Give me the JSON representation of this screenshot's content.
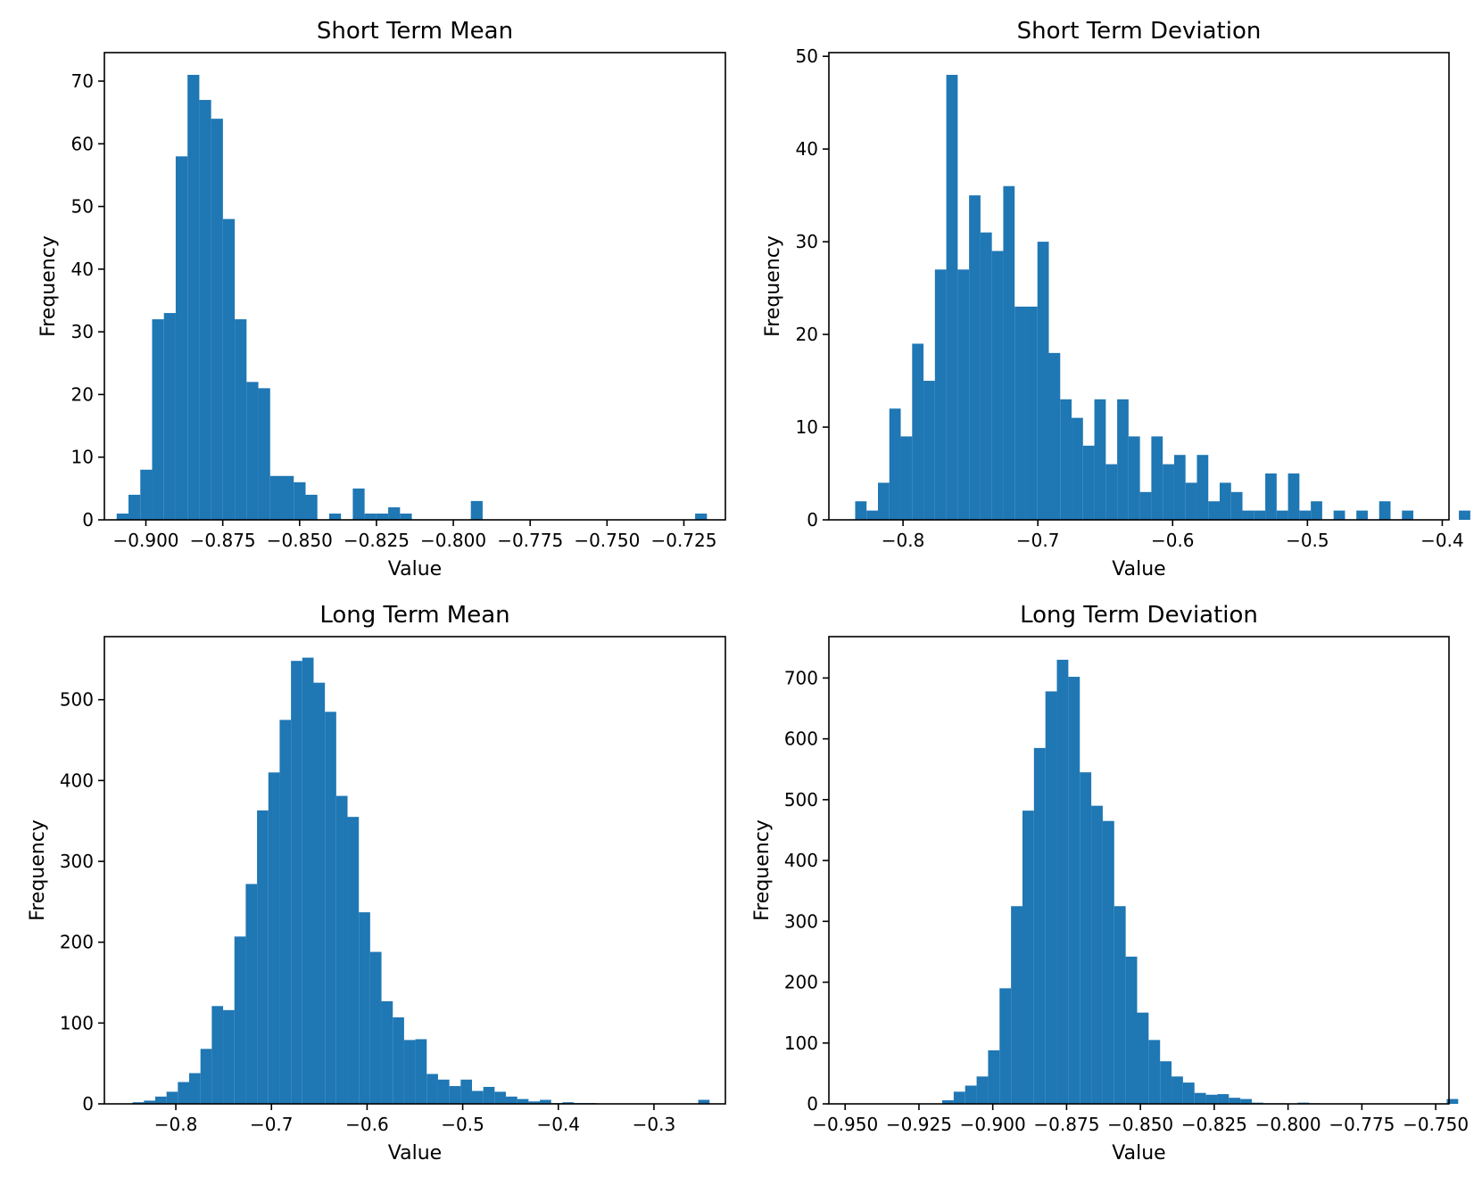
{
  "chart_data": [
    {
      "type": "histogram",
      "title": "Short Term Mean",
      "xlabel": "Value",
      "ylabel": "Frequency",
      "xlim": [
        -0.9135,
        -0.7115
      ],
      "ylim": [
        0,
        74.55
      ],
      "xticks": [
        -0.9,
        -0.875,
        -0.85,
        -0.825,
        -0.8,
        -0.775,
        -0.75,
        -0.725
      ],
      "xtick_labels": [
        "−0.900",
        "−0.875",
        "−0.850",
        "−0.825",
        "−0.800",
        "−0.775",
        "−0.750",
        "−0.725"
      ],
      "yticks": [
        0,
        10,
        20,
        30,
        40,
        50,
        60,
        70
      ],
      "ytick_labels": [
        "0",
        "10",
        "20",
        "30",
        "40",
        "50",
        "60",
        "70"
      ],
      "bin_start": -0.9095,
      "bin_width": 0.00384,
      "values": [
        1,
        4,
        8,
        32,
        33,
        58,
        71,
        67,
        64,
        48,
        32,
        22,
        21,
        7,
        7,
        6,
        4,
        0,
        1,
        0,
        5,
        1,
        1,
        2,
        1,
        0,
        0,
        0,
        0,
        0,
        3,
        0,
        0,
        0,
        0,
        0,
        0,
        0,
        0,
        0,
        0,
        0,
        0,
        0,
        0,
        0,
        0,
        0,
        0,
        1
      ],
      "color": "#1f77b4"
    },
    {
      "type": "histogram",
      "title": "Short Term Deviation",
      "xlabel": "Value",
      "ylabel": "Frequency",
      "xlim": [
        -0.855,
        -0.395
      ],
      "ylim": [
        0,
        50.4
      ],
      "xticks": [
        -0.8,
        -0.7,
        -0.6,
        -0.5,
        -0.4
      ],
      "xtick_labels": [
        "−0.8",
        "−0.7",
        "−0.6",
        "−0.5",
        "−0.4"
      ],
      "yticks": [
        0,
        10,
        20,
        30,
        40,
        50
      ],
      "ytick_labels": [
        "0",
        "10",
        "20",
        "30",
        "40",
        "50"
      ],
      "bin_start": -0.8355,
      "bin_width": 0.00845,
      "values": [
        2,
        1,
        4,
        12,
        9,
        19,
        15,
        27,
        48,
        27,
        35,
        31,
        29,
        36,
        23,
        23,
        30,
        18,
        13,
        11,
        8,
        13,
        6,
        13,
        9,
        3,
        9,
        6,
        7,
        4,
        7,
        2,
        4,
        3,
        1,
        1,
        5,
        1,
        5,
        1,
        2,
        0,
        1,
        0,
        1,
        0,
        2,
        0,
        1,
        0,
        0,
        0,
        0,
        1
      ],
      "color": "#1f77b4"
    },
    {
      "type": "histogram",
      "title": "Long Term Mean",
      "xlabel": "Value",
      "ylabel": "Frequency",
      "xlim": [
        -0.8747,
        -0.2253
      ],
      "ylim": [
        0,
        578
      ],
      "xticks": [
        -0.8,
        -0.7,
        -0.6,
        -0.5,
        -0.4,
        -0.3
      ],
      "xtick_labels": [
        "−0.8",
        "−0.7",
        "−0.6",
        "−0.5",
        "−0.4",
        "−0.3"
      ],
      "yticks": [
        0,
        100,
        200,
        300,
        400,
        500
      ],
      "ytick_labels": [
        "0",
        "100",
        "200",
        "300",
        "400",
        "500"
      ],
      "bin_start": -0.8452,
      "bin_width": 0.01183,
      "values": [
        2,
        4,
        9,
        15,
        27,
        38,
        68,
        121,
        116,
        207,
        272,
        363,
        410,
        475,
        548,
        552,
        521,
        485,
        381,
        355,
        237,
        188,
        127,
        107,
        79,
        80,
        37,
        30,
        22,
        30,
        16,
        21,
        15,
        9,
        6,
        3,
        5,
        1,
        2,
        1,
        1,
        0,
        0,
        0,
        0,
        0,
        0,
        0,
        0,
        0,
        5
      ],
      "color": "#1f77b4"
    },
    {
      "type": "histogram",
      "title": "Long Term Deviation",
      "xlabel": "Value",
      "ylabel": "Frequency",
      "xlim": [
        -0.9555,
        -0.7455
      ],
      "ylim": [
        0,
        768
      ],
      "xticks": [
        -0.95,
        -0.925,
        -0.9,
        -0.875,
        -0.85,
        -0.825,
        -0.8,
        -0.775,
        -0.75
      ],
      "xtick_labels": [
        "−0.950",
        "−0.925",
        "−0.900",
        "−0.875",
        "−0.850",
        "−0.825",
        "−0.800",
        "−0.775",
        "−0.750"
      ],
      "yticks": [
        0,
        100,
        200,
        300,
        400,
        500,
        600,
        700
      ],
      "ytick_labels": [
        "0",
        "100",
        "200",
        "300",
        "400",
        "500",
        "600",
        "700"
      ],
      "bin_start": -0.9443,
      "bin_width": 0.003883,
      "values": [
        0,
        0,
        0,
        0,
        0,
        0,
        0,
        6,
        20,
        30,
        45,
        88,
        190,
        325,
        482,
        585,
        678,
        730,
        702,
        545,
        490,
        465,
        325,
        242,
        150,
        105,
        70,
        45,
        35,
        18,
        15,
        16,
        10,
        8,
        2,
        1,
        1,
        0,
        2,
        1,
        0,
        0,
        0,
        0,
        0,
        0,
        0,
        0,
        0,
        0,
        0,
        8
      ],
      "color": "#1f77b4"
    }
  ]
}
